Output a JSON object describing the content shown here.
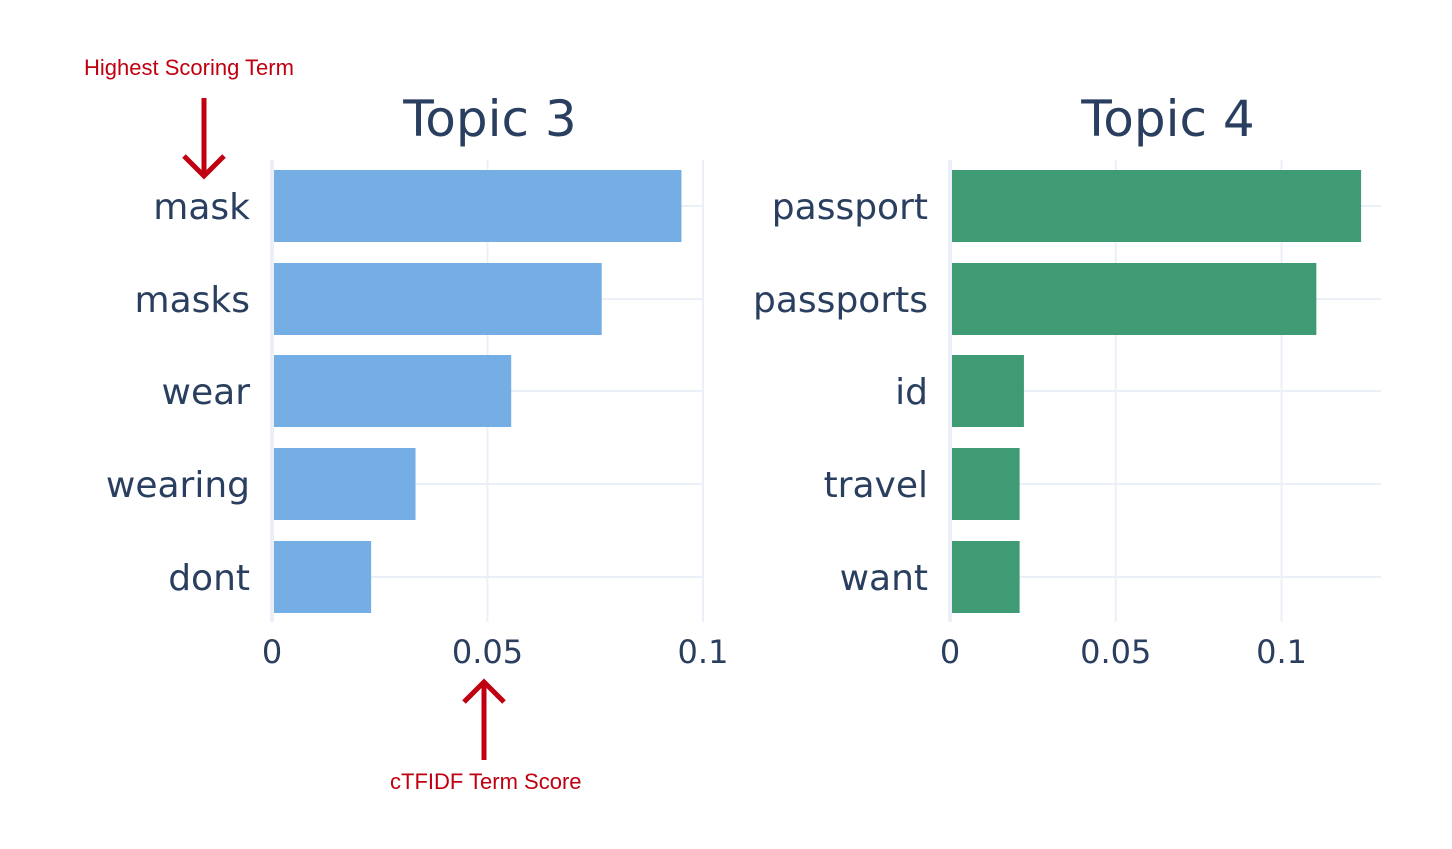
{
  "chart_data": [
    {
      "type": "bar",
      "orientation": "horizontal",
      "title": "Topic 3",
      "categories": [
        "mask",
        "masks",
        "wear",
        "wearing",
        "dont"
      ],
      "values": [
        0.095,
        0.0765,
        0.0555,
        0.0333,
        0.023
      ],
      "color": "#74aee4",
      "xlim": [
        0,
        0.1
      ],
      "xticks": [
        0,
        0.05,
        0.1
      ],
      "xtick_labels": [
        "0",
        "0.05",
        "0.1"
      ],
      "grid": true
    },
    {
      "type": "bar",
      "orientation": "horizontal",
      "title": "Topic 4",
      "categories": [
        "passport",
        "passports",
        "id",
        "travel",
        "want"
      ],
      "values": [
        0.124,
        0.1105,
        0.0223,
        0.021,
        0.021
      ],
      "color": "#3f9b74",
      "xlim": [
        0,
        0.13
      ],
      "xticks": [
        0,
        0.05,
        0.1
      ],
      "xtick_labels": [
        "0",
        "0.05",
        "0.1"
      ],
      "grid": true
    }
  ],
  "annotations": {
    "top_label": "Highest Scoring Term",
    "bottom_label": "cTFIDF Term Score",
    "color": "#c00010"
  },
  "colors": {
    "text": "#2a3f5f",
    "grid": "#ebf0f8"
  }
}
